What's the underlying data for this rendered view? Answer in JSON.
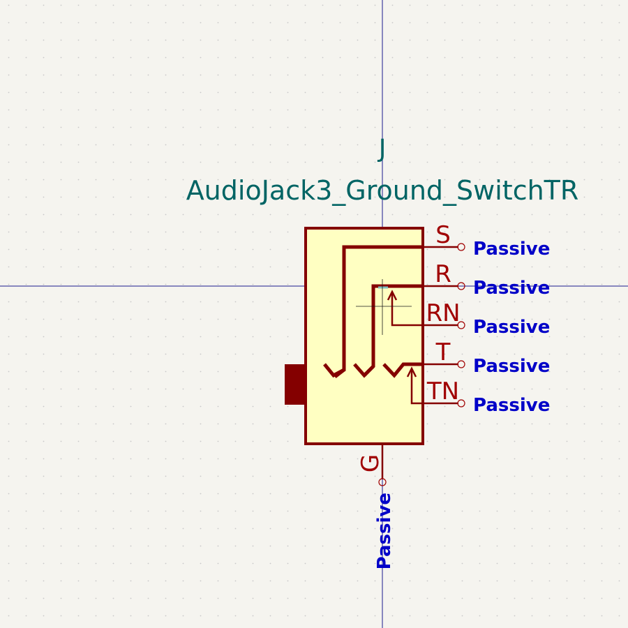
{
  "symbol": {
    "reference": "J",
    "value": "AudioJack3_Ground_SwitchTR"
  },
  "pins": [
    {
      "name": "S",
      "type": "Passive"
    },
    {
      "name": "R",
      "type": "Passive"
    },
    {
      "name": "RN",
      "type": "Passive"
    },
    {
      "name": "T",
      "type": "Passive"
    },
    {
      "name": "TN",
      "type": "Passive"
    },
    {
      "name": "G",
      "type": "Passive"
    }
  ],
  "colors": {
    "background": "#f5f4ef",
    "grid_dot": "#c8c8c8",
    "crosshair": "#1a1a8c",
    "body_fill": "#ffffc2",
    "body_outline": "#840000",
    "pin_line": "#840000",
    "pin_name": "#a00000",
    "pin_type": "#0000c8",
    "reference": "#006464",
    "anchor": "#7fbfbf"
  }
}
